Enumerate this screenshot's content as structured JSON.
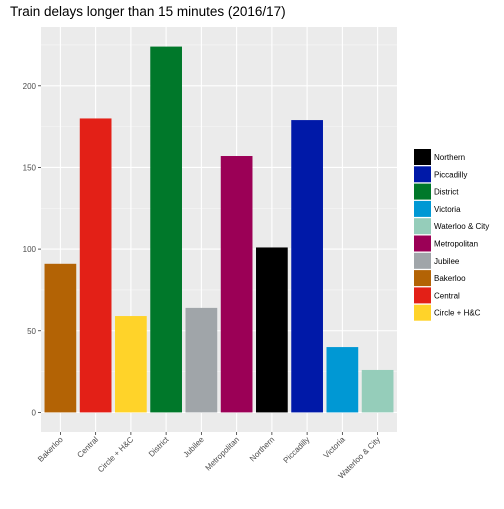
{
  "chart_data": {
    "type": "bar",
    "title": "Train delays longer than 15 minutes (2016/17)",
    "xlabel": "",
    "ylabel": "",
    "ylim": [
      -12,
      236
    ],
    "yticks": [
      0,
      50,
      100,
      150,
      200
    ],
    "grid": true,
    "legend_position": "right",
    "categories": [
      "Bakerloo",
      "Central",
      "Circle + H&C",
      "District",
      "Jubilee",
      "Metropolitan",
      "Northern",
      "Piccadilly",
      "Victoria",
      "Waterloo & City"
    ],
    "values": [
      91,
      180,
      59,
      224,
      64,
      157,
      101,
      179,
      40,
      26
    ],
    "colors": [
      "#B36305",
      "#E32017",
      "#FFD329",
      "#00782A",
      "#A0A5A9",
      "#9B0056",
      "#000000",
      "#0019A8",
      "#0098D4",
      "#95CDBA"
    ],
    "legend": [
      {
        "label": "Northern",
        "color": "#000000"
      },
      {
        "label": "Piccadilly",
        "color": "#0019A8"
      },
      {
        "label": "District",
        "color": "#00782A"
      },
      {
        "label": "Victoria",
        "color": "#0098D4"
      },
      {
        "label": "Waterloo & City",
        "color": "#95CDBA"
      },
      {
        "label": "Metropolitan",
        "color": "#9B0056"
      },
      {
        "label": "Jubilee",
        "color": "#A0A5A9"
      },
      {
        "label": "Bakerloo",
        "color": "#B36305"
      },
      {
        "label": "Central",
        "color": "#E32017"
      },
      {
        "label": "Circle + H&C",
        "color": "#FFD329"
      }
    ]
  }
}
